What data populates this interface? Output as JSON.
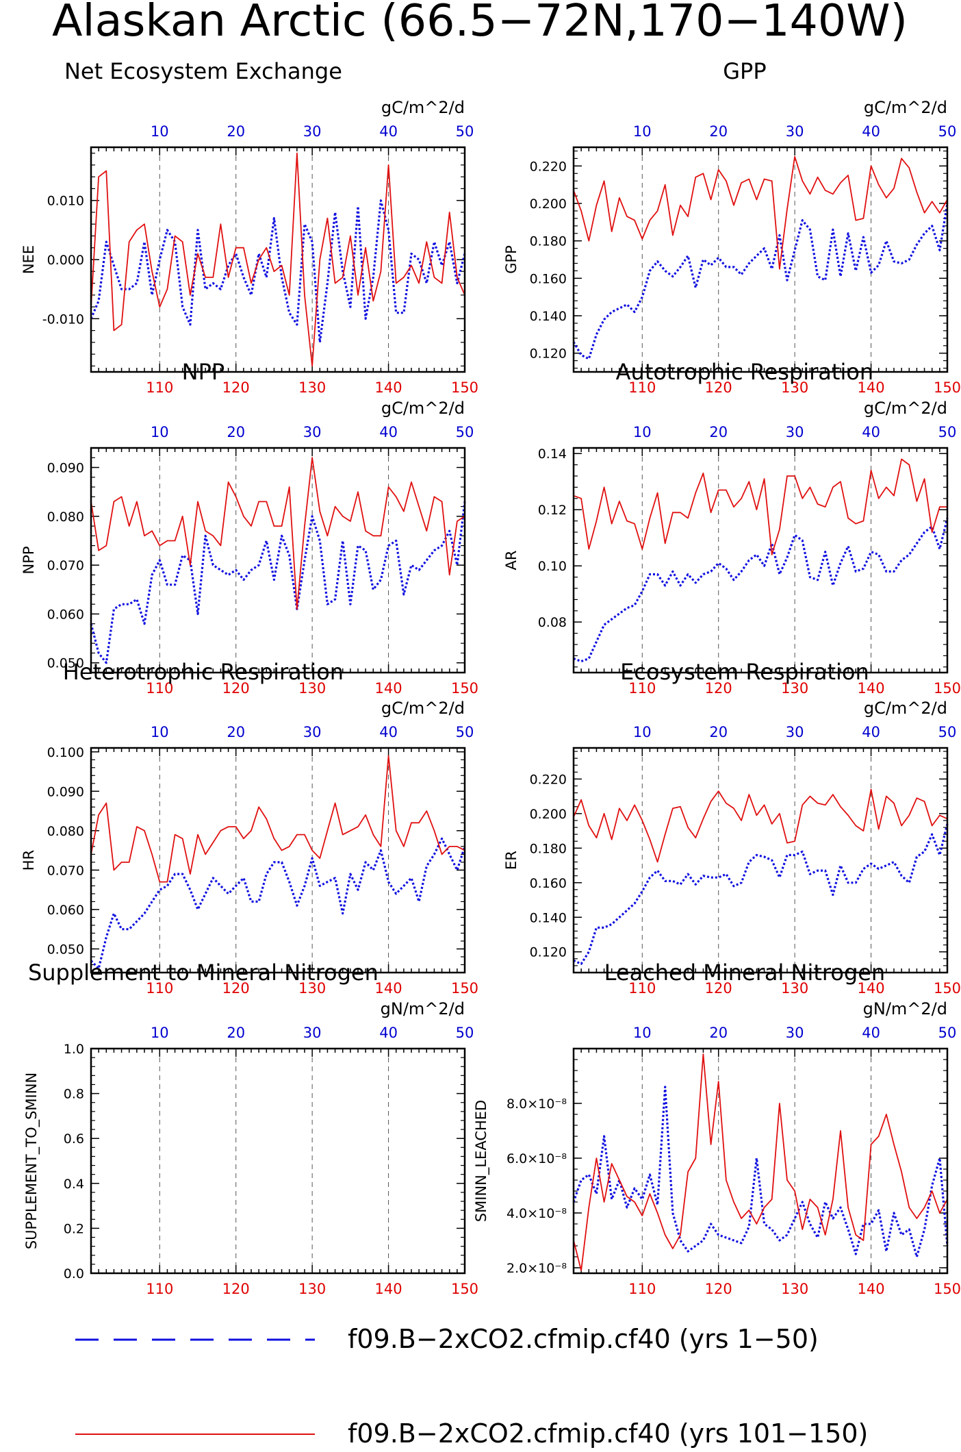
{
  "figure_title": "Alaskan Arctic (66.5−72N,170−140W)",
  "colors": {
    "case1": "#1010e0",
    "case2": "#e01010",
    "frame": "#000000",
    "grid": "#555555"
  },
  "legend": {
    "entries": [
      {
        "label": "f09.B−2xCO2.cfmip.cf40 (yrs 1−50)",
        "color": "#1010e0",
        "style": "dashed"
      },
      {
        "label": "f09.B−2xCO2.cfmip.cf40 (yrs 101−150)",
        "color": "#e01010",
        "style": "solid"
      }
    ]
  },
  "chart_data": [
    {
      "type": "line",
      "title": "Net Ecosystem Exchange",
      "ylabel": "NEE",
      "units": "gC/m^2/d",
      "x_bottom_ticks": [
        110,
        120,
        130,
        140,
        150
      ],
      "x_top_ticks": [
        10,
        20,
        30,
        40,
        50
      ],
      "ylim": [
        -0.019,
        0.019
      ],
      "yticks": [
        "-0.010",
        "0.000",
        "0.010"
      ],
      "ytick_values": [
        -0.01,
        0,
        0.01
      ],
      "series": [
        {
          "name": "yrs 1-50",
          "values": [
            -0.01,
            -0.007,
            0.003,
            -0.001,
            -0.005,
            -0.005,
            -0.004,
            0.003,
            -0.006,
            0.0,
            0.005,
            0.003,
            -0.008,
            -0.011,
            0.005,
            -0.005,
            -0.004,
            -0.005,
            -0.001,
            0.001,
            -0.003,
            -0.006,
            0.001,
            -0.003,
            0.007,
            -0.003,
            -0.009,
            -0.011,
            0.006,
            0.003,
            -0.014,
            -0.004,
            0.008,
            -0.002,
            -0.008,
            0.009,
            -0.01,
            -0.003,
            0.01,
            0.005,
            -0.009,
            -0.009,
            0.001,
            0.0,
            -0.004,
            0.003,
            -0.001,
            0.003,
            -0.004,
            0.001
          ]
        },
        {
          "name": "yrs 101-150",
          "values": [
            -0.008,
            0.014,
            0.015,
            -0.012,
            -0.011,
            0.003,
            0.005,
            0.006,
            -0.002,
            -0.008,
            -0.005,
            0.004,
            0.003,
            -0.006,
            0.001,
            -0.003,
            -0.003,
            0.006,
            -0.003,
            0.002,
            0.002,
            -0.004,
            0.0,
            0.002,
            -0.002,
            -0.001,
            -0.006,
            0.018,
            -0.006,
            -0.018,
            0.0,
            0.007,
            -0.004,
            -0.003,
            0.004,
            -0.006,
            0.002,
            -0.007,
            -0.002,
            0.016,
            -0.004,
            -0.003,
            -0.001,
            -0.004,
            0.003,
            -0.003,
            -0.004,
            0.008,
            -0.003,
            -0.006
          ]
        }
      ]
    },
    {
      "type": "line",
      "title": "GPP",
      "ylabel": "GPP",
      "units": "gC/m^2/d",
      "x_bottom_ticks": [
        110,
        120,
        130,
        140,
        150
      ],
      "x_top_ticks": [
        10,
        20,
        30,
        40,
        50
      ],
      "ylim": [
        0.11,
        0.23
      ],
      "yticks": [
        "0.120",
        "0.140",
        "0.160",
        "0.180",
        "0.200",
        "0.220"
      ],
      "ytick_values": [
        0.12,
        0.14,
        0.16,
        0.18,
        0.2,
        0.22
      ],
      "series": [
        {
          "name": "yrs 1-50",
          "values": [
            0.126,
            0.119,
            0.117,
            0.13,
            0.138,
            0.142,
            0.144,
            0.146,
            0.142,
            0.15,
            0.164,
            0.169,
            0.164,
            0.161,
            0.166,
            0.172,
            0.155,
            0.17,
            0.167,
            0.171,
            0.166,
            0.166,
            0.162,
            0.168,
            0.172,
            0.176,
            0.165,
            0.183,
            0.159,
            0.175,
            0.191,
            0.186,
            0.161,
            0.159,
            0.186,
            0.161,
            0.184,
            0.164,
            0.182,
            0.163,
            0.167,
            0.18,
            0.169,
            0.168,
            0.17,
            0.178,
            0.184,
            0.188,
            0.175,
            0.2
          ]
        },
        {
          "name": "yrs 101-150",
          "values": [
            0.207,
            0.196,
            0.18,
            0.199,
            0.212,
            0.185,
            0.203,
            0.193,
            0.191,
            0.181,
            0.191,
            0.196,
            0.21,
            0.183,
            0.199,
            0.193,
            0.214,
            0.216,
            0.202,
            0.218,
            0.212,
            0.199,
            0.211,
            0.213,
            0.202,
            0.213,
            0.212,
            0.165,
            0.197,
            0.225,
            0.212,
            0.205,
            0.214,
            0.207,
            0.205,
            0.211,
            0.215,
            0.191,
            0.192,
            0.22,
            0.21,
            0.203,
            0.208,
            0.224,
            0.219,
            0.206,
            0.195,
            0.201,
            0.195,
            0.202
          ]
        }
      ]
    },
    {
      "type": "line",
      "title": "NPP",
      "ylabel": "NPP",
      "units": "gC/m^2/d",
      "x_bottom_ticks": [
        110,
        120,
        130,
        140,
        150
      ],
      "x_top_ticks": [
        10,
        20,
        30,
        40,
        50
      ],
      "ylim": [
        0.048,
        0.094
      ],
      "yticks": [
        "0.050",
        "0.060",
        "0.070",
        "0.080",
        "0.090"
      ],
      "ytick_values": [
        0.05,
        0.06,
        0.07,
        0.08,
        0.09
      ],
      "series": [
        {
          "name": "yrs 1-50",
          "values": [
            0.058,
            0.052,
            0.05,
            0.061,
            0.062,
            0.062,
            0.063,
            0.058,
            0.068,
            0.071,
            0.066,
            0.066,
            0.072,
            0.071,
            0.06,
            0.076,
            0.07,
            0.069,
            0.068,
            0.069,
            0.067,
            0.069,
            0.07,
            0.075,
            0.067,
            0.076,
            0.072,
            0.061,
            0.071,
            0.08,
            0.075,
            0.062,
            0.063,
            0.075,
            0.062,
            0.074,
            0.073,
            0.065,
            0.067,
            0.074,
            0.075,
            0.064,
            0.07,
            0.069,
            0.071,
            0.073,
            0.074,
            0.077,
            0.07,
            0.083
          ]
        },
        {
          "name": "yrs 101-150",
          "values": [
            0.083,
            0.073,
            0.074,
            0.083,
            0.084,
            0.078,
            0.083,
            0.076,
            0.077,
            0.074,
            0.075,
            0.075,
            0.08,
            0.07,
            0.083,
            0.077,
            0.076,
            0.074,
            0.087,
            0.084,
            0.08,
            0.078,
            0.083,
            0.083,
            0.078,
            0.078,
            0.086,
            0.061,
            0.078,
            0.092,
            0.081,
            0.076,
            0.082,
            0.08,
            0.079,
            0.085,
            0.077,
            0.076,
            0.076,
            0.086,
            0.084,
            0.081,
            0.087,
            0.082,
            0.077,
            0.084,
            0.083,
            0.068,
            0.079,
            0.08
          ]
        }
      ]
    },
    {
      "type": "line",
      "title": "Autotrophic Respiration",
      "ylabel": "AR",
      "units": "gC/m^2/d",
      "x_bottom_ticks": [
        110,
        120,
        130,
        140,
        150
      ],
      "x_top_ticks": [
        10,
        20,
        30,
        40,
        50
      ],
      "ylim": [
        0.062,
        0.142
      ],
      "yticks": [
        "0.08",
        "0.10",
        "0.12",
        "0.14"
      ],
      "ytick_values": [
        0.08,
        0.1,
        0.12,
        0.14
      ],
      "series": [
        {
          "name": "yrs 1-50",
          "values": [
            0.067,
            0.066,
            0.067,
            0.073,
            0.079,
            0.081,
            0.083,
            0.085,
            0.086,
            0.091,
            0.097,
            0.097,
            0.093,
            0.098,
            0.093,
            0.097,
            0.094,
            0.097,
            0.098,
            0.101,
            0.099,
            0.095,
            0.098,
            0.102,
            0.104,
            0.1,
            0.108,
            0.097,
            0.103,
            0.111,
            0.109,
            0.096,
            0.095,
            0.105,
            0.093,
            0.101,
            0.107,
            0.098,
            0.099,
            0.105,
            0.104,
            0.098,
            0.098,
            0.102,
            0.104,
            0.108,
            0.112,
            0.114,
            0.106,
            0.117
          ]
        },
        {
          "name": "yrs 101-150",
          "values": [
            0.125,
            0.124,
            0.106,
            0.116,
            0.128,
            0.115,
            0.123,
            0.116,
            0.115,
            0.106,
            0.117,
            0.126,
            0.108,
            0.119,
            0.119,
            0.117,
            0.126,
            0.133,
            0.119,
            0.127,
            0.127,
            0.121,
            0.124,
            0.13,
            0.12,
            0.131,
            0.104,
            0.113,
            0.132,
            0.132,
            0.124,
            0.128,
            0.122,
            0.121,
            0.128,
            0.13,
            0.117,
            0.115,
            0.116,
            0.134,
            0.124,
            0.128,
            0.125,
            0.138,
            0.136,
            0.123,
            0.131,
            0.112,
            0.121,
            0.121
          ]
        }
      ]
    },
    {
      "type": "line",
      "title": "Heterotrophic Respiration",
      "ylabel": "HR",
      "units": "gC/m^2/d",
      "x_bottom_ticks": [
        110,
        120,
        130,
        140,
        150
      ],
      "x_top_ticks": [
        10,
        20,
        30,
        40,
        50
      ],
      "ylim": [
        0.044,
        0.101
      ],
      "yticks": [
        "0.050",
        "0.060",
        "0.070",
        "0.080",
        "0.090",
        "0.100"
      ],
      "ytick_values": [
        0.05,
        0.06,
        0.07,
        0.08,
        0.09,
        0.1
      ],
      "series": [
        {
          "name": "yrs 1-50",
          "values": [
            0.047,
            0.045,
            0.053,
            0.059,
            0.055,
            0.055,
            0.057,
            0.059,
            0.062,
            0.065,
            0.066,
            0.069,
            0.069,
            0.065,
            0.06,
            0.064,
            0.068,
            0.066,
            0.064,
            0.066,
            0.068,
            0.062,
            0.062,
            0.069,
            0.072,
            0.072,
            0.067,
            0.061,
            0.066,
            0.073,
            0.066,
            0.067,
            0.068,
            0.059,
            0.069,
            0.065,
            0.072,
            0.07,
            0.075,
            0.067,
            0.064,
            0.066,
            0.068,
            0.062,
            0.071,
            0.074,
            0.078,
            0.074,
            0.07,
            0.076
          ]
        },
        {
          "name": "yrs 101-150",
          "values": [
            0.074,
            0.084,
            0.087,
            0.07,
            0.072,
            0.072,
            0.081,
            0.08,
            0.074,
            0.067,
            0.067,
            0.079,
            0.078,
            0.069,
            0.079,
            0.074,
            0.077,
            0.08,
            0.081,
            0.081,
            0.078,
            0.08,
            0.086,
            0.083,
            0.078,
            0.075,
            0.076,
            0.079,
            0.079,
            0.075,
            0.073,
            0.08,
            0.087,
            0.079,
            0.08,
            0.081,
            0.084,
            0.079,
            0.076,
            0.099,
            0.08,
            0.076,
            0.082,
            0.082,
            0.085,
            0.08,
            0.074,
            0.076,
            0.076,
            0.075
          ]
        }
      ]
    },
    {
      "type": "line",
      "title": "Ecosystem Respiration",
      "ylabel": "ER",
      "units": "gC/m^2/d",
      "x_bottom_ticks": [
        110,
        120,
        130,
        140,
        150
      ],
      "x_top_ticks": [
        10,
        20,
        30,
        40,
        50
      ],
      "ylim": [
        0.108,
        0.238
      ],
      "yticks": [
        "0.120",
        "0.140",
        "0.160",
        "0.180",
        "0.200",
        "0.220"
      ],
      "ytick_values": [
        0.12,
        0.14,
        0.16,
        0.18,
        0.2,
        0.22
      ],
      "series": [
        {
          "name": "yrs 1-50",
          "values": [
            0.115,
            0.113,
            0.12,
            0.134,
            0.134,
            0.136,
            0.14,
            0.144,
            0.148,
            0.155,
            0.163,
            0.167,
            0.161,
            0.161,
            0.159,
            0.165,
            0.159,
            0.164,
            0.163,
            0.163,
            0.165,
            0.158,
            0.16,
            0.172,
            0.176,
            0.175,
            0.173,
            0.163,
            0.176,
            0.176,
            0.178,
            0.165,
            0.167,
            0.167,
            0.153,
            0.17,
            0.16,
            0.16,
            0.168,
            0.171,
            0.168,
            0.17,
            0.172,
            0.164,
            0.16,
            0.175,
            0.178,
            0.188,
            0.176,
            0.194
          ]
        },
        {
          "name": "yrs 101-150",
          "values": [
            0.198,
            0.208,
            0.193,
            0.186,
            0.2,
            0.185,
            0.203,
            0.196,
            0.205,
            0.196,
            0.185,
            0.172,
            0.188,
            0.203,
            0.204,
            0.192,
            0.186,
            0.197,
            0.207,
            0.213,
            0.206,
            0.203,
            0.196,
            0.211,
            0.199,
            0.205,
            0.194,
            0.2,
            0.183,
            0.184,
            0.205,
            0.21,
            0.206,
            0.205,
            0.211,
            0.204,
            0.199,
            0.193,
            0.19,
            0.214,
            0.191,
            0.21,
            0.206,
            0.193,
            0.199,
            0.209,
            0.207,
            0.193,
            0.199,
            0.197
          ]
        }
      ]
    },
    {
      "type": "line",
      "title": "Supplement to Mineral Nitrogen",
      "ylabel": "SUPPLEMENT_TO_SMINN",
      "units": "gN/m^2/d",
      "x_bottom_ticks": [
        110,
        120,
        130,
        140,
        150
      ],
      "x_top_ticks": [
        10,
        20,
        30,
        40,
        50
      ],
      "ylim": [
        0,
        1
      ],
      "yticks": [
        "0.0",
        "0.2",
        "0.4",
        "0.6",
        "0.8",
        "1.0"
      ],
      "ytick_values": [
        0,
        0.2,
        0.4,
        0.6,
        0.8,
        1.0
      ],
      "series": []
    },
    {
      "type": "line",
      "title": "Leached Mineral Nitrogen",
      "ylabel": "SMINN_LEACHED",
      "units": "gN/m^2/d",
      "x_bottom_ticks": [
        110,
        120,
        130,
        140,
        150
      ],
      "x_top_ticks": [
        10,
        20,
        30,
        40,
        50
      ],
      "ylim": [
        1.8e-08,
        1e-07
      ],
      "yticks": [
        "2.0×10⁻⁸",
        "4.0×10⁻⁸",
        "6.0×10⁻⁸",
        "8.0×10⁻⁸"
      ],
      "ytick_values": [
        2e-08,
        4e-08,
        6e-08,
        8e-08
      ],
      "series": [
        {
          "name": "yrs 1-50",
          "values": [
            4.4e-08,
            5.2e-08,
            5.4e-08,
            4.7e-08,
            6.8e-08,
            4.5e-08,
            5.2e-08,
            4.2e-08,
            4.9e-08,
            4.5e-08,
            5.4e-08,
            4.3e-08,
            8.6e-08,
            4e-08,
            3e-08,
            2.6e-08,
            2.8e-08,
            3e-08,
            3.6e-08,
            3.2e-08,
            3.1e-08,
            3e-08,
            2.9e-08,
            3.5e-08,
            6e-08,
            3.6e-08,
            3.4e-08,
            3e-08,
            3.2e-08,
            3.8e-08,
            4.4e-08,
            3.6e-08,
            3.1e-08,
            4.4e-08,
            3.8e-08,
            4.2e-08,
            3.4e-08,
            2.5e-08,
            3.6e-08,
            3.6e-08,
            4.1e-08,
            2.6e-08,
            4e-08,
            3.2e-08,
            3.4e-08,
            2.4e-08,
            3.4e-08,
            5e-08,
            6e-08,
            2.8e-08
          ]
        },
        {
          "name": "yrs 101-150",
          "values": [
            3e-08,
            1.9e-08,
            4.2e-08,
            6e-08,
            4.4e-08,
            5.8e-08,
            5.2e-08,
            4.6e-08,
            4.4e-08,
            3.9e-08,
            4.7e-08,
            4e-08,
            3.2e-08,
            2.7e-08,
            3.2e-08,
            5.5e-08,
            6e-08,
            9.8e-08,
            6.5e-08,
            8.8e-08,
            5.2e-08,
            4.4e-08,
            3.8e-08,
            4.1e-08,
            3.6e-08,
            4.2e-08,
            4.5e-08,
            8e-08,
            5.2e-08,
            4.8e-08,
            3.4e-08,
            4.5e-08,
            4.2e-08,
            3.2e-08,
            4.5e-08,
            7e-08,
            4.2e-08,
            3.2e-08,
            3e-08,
            6.5e-08,
            6.8e-08,
            7.6e-08,
            6.5e-08,
            5.5e-08,
            4.2e-08,
            3.8e-08,
            4.2e-08,
            4.8e-08,
            4e-08,
            4.5e-08
          ]
        }
      ]
    }
  ]
}
